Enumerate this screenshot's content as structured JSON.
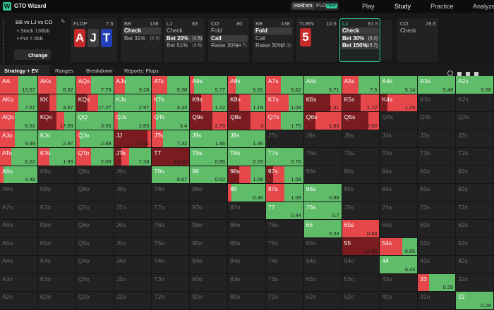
{
  "app": {
    "logo": "W",
    "name": "GTO Wizard",
    "modes": [
      "Hold'em",
      "PLO"
    ],
    "badge": "NEW",
    "nav": [
      "Play",
      "Study",
      "Practice",
      "Analyze"
    ]
  },
  "spot": {
    "title": "BB vs LJ vs CO",
    "stack": "Stack 138bb",
    "pot": "Pot 7.5bb",
    "button": "Change"
  },
  "flop": {
    "label": "FLOP",
    "pot": 7.5,
    "cards": [
      {
        "rank": "A",
        "color": "#c62a2a"
      },
      {
        "rank": "J",
        "color": "#3d3d3d"
      },
      {
        "rank": "T",
        "color": "#2440b8"
      }
    ]
  },
  "turn": {
    "label": "TURN",
    "pot": 10.5,
    "cards": [
      {
        "rank": "5",
        "color": "#c62a2a"
      }
    ]
  },
  "players": [
    {
      "player": "BB",
      "stack": 138,
      "actions": [
        {
          "label": "Check",
          "selected": true
        },
        {
          "label": "Bet 31%",
          "size": "(2.3)"
        }
      ]
    },
    {
      "player": "LJ",
      "stack": 83,
      "actions": [
        {
          "label": "Check"
        },
        {
          "label": "Bet 20%",
          "size": "(1.5)",
          "selected": true
        },
        {
          "label": "Bet 51%",
          "size": "(3.8)"
        }
      ]
    },
    {
      "player": "CO",
      "stack": 80,
      "actions": [
        {
          "label": "Fold"
        },
        {
          "label": "Call",
          "selected": true
        },
        {
          "label": "Raise 30%",
          "size": "(4.7)"
        }
      ]
    },
    {
      "player": "BB",
      "stack": 138,
      "actions": [
        {
          "label": "Fold",
          "selected": true
        },
        {
          "label": "Call"
        },
        {
          "label": "Raise 30%",
          "size": "(5.1)"
        }
      ]
    },
    {
      "player": "LJ",
      "stack": 81.5,
      "current": true,
      "actions": [
        {
          "label": "Check",
          "selected": true
        },
        {
          "label": "Bet 30%",
          "size": "(3.2)",
          "selected": true
        },
        {
          "label": "Bet 150%",
          "size": "(15.7)",
          "selected": true
        }
      ]
    },
    {
      "player": "CO",
      "stack": 78.5,
      "actions": [
        {
          "label": "Check"
        }
      ]
    }
  ],
  "tabs": [
    "Strategy + EV",
    "Ranges",
    "Breakdown",
    "Reports: Flops"
  ],
  "colors": [
    "#7a1c1f",
    "#e5474b",
    "#5fbd69"
  ],
  "grid": [
    [
      {
        "h": "AA",
        "ev": 13.57,
        "f": [
          0,
          0.5,
          0.5
        ]
      },
      {
        "h": "AKs",
        "ev": 8.52,
        "f": [
          0,
          0.5,
          0.5
        ]
      },
      {
        "h": "AQs",
        "ev": 7.79,
        "f": [
          0,
          0.4,
          0.6
        ]
      },
      {
        "h": "AJs",
        "ev": 9.28,
        "f": [
          0,
          0.3,
          0.7
        ]
      },
      {
        "h": "ATs",
        "ev": 9.38,
        "f": [
          0,
          0.4,
          0.6
        ]
      },
      {
        "h": "A9s",
        "ev": 5.77,
        "f": [
          0,
          0.1,
          0.9
        ]
      },
      {
        "h": "A8s",
        "ev": 5.61,
        "f": [
          0,
          0.2,
          0.8
        ]
      },
      {
        "h": "A7s",
        "ev": 5.62,
        "f": [
          0,
          0.4,
          0.6
        ]
      },
      {
        "h": "A6s",
        "ev": 5.71,
        "f": [
          0,
          0,
          1
        ]
      },
      {
        "h": "A5s",
        "ev": 7.5,
        "f": [
          0,
          0.45,
          0.55
        ]
      },
      {
        "h": "A4s",
        "ev": 5.14,
        "f": [
          0,
          0,
          1
        ]
      },
      {
        "h": "A3s",
        "ev": 5.46,
        "f": [
          0,
          0,
          1
        ]
      },
      {
        "h": "A2s",
        "ev": 5.66,
        "f": [
          0,
          0,
          1
        ]
      }
    ],
    [
      {
        "h": "AKo",
        "ev": 7.57,
        "f": [
          0,
          0.5,
          0.5
        ]
      },
      {
        "h": "KK",
        "ev": 3.67,
        "f": [
          0.3,
          0.2,
          0.5
        ]
      },
      {
        "h": "KQs",
        "ev": 17.27,
        "f": [
          0.3,
          0.3,
          0.4
        ]
      },
      {
        "h": "KJs",
        "ev": 2.97,
        "f": [
          0,
          0,
          1
        ]
      },
      {
        "h": "KTs",
        "ev": 3.33,
        "f": [
          0,
          0.1,
          0.9
        ]
      },
      {
        "h": "K9s",
        "ev": 1.12,
        "f": [
          0.3,
          0.3,
          0.4
        ]
      },
      {
        "h": "K8s",
        "ev": 1.19,
        "f": [
          0.3,
          0.3,
          0.4
        ]
      },
      {
        "h": "K7s",
        "ev": 1.08,
        "f": [
          0,
          0.6,
          0.4
        ]
      },
      {
        "h": "K6s",
        "ev": 1.31,
        "f": [
          0.7,
          0.3,
          0
        ]
      },
      {
        "h": "K5s",
        "ev": 1.72,
        "f": [
          0.5,
          0.5,
          0
        ]
      },
      {
        "h": "K4s",
        "ev": 1.25,
        "f": [
          0.2,
          0.8,
          0
        ]
      },
      "K3s",
      "K2s"
    ],
    [
      {
        "h": "AQo",
        "ev": 6.52,
        "f": [
          0,
          0.4,
          0.6
        ]
      },
      {
        "h": "KQo",
        "ev": 17.09,
        "f": [
          0.5,
          0.2,
          0.3
        ]
      },
      {
        "h": "QQ",
        "ev": 3.55,
        "f": [
          0,
          0,
          1
        ]
      },
      {
        "h": "QJs",
        "ev": 2.83,
        "f": [
          0,
          0.1,
          0.9
        ]
      },
      {
        "h": "QTs",
        "ev": 3.4,
        "f": [
          0,
          0.1,
          0.9
        ]
      },
      {
        "h": "Q9s",
        "ev": 2.79,
        "f": [
          0.6,
          0.4,
          0
        ]
      },
      {
        "h": "Q8s",
        "ev": 3,
        "f": [
          0.6,
          0.4,
          0
        ]
      },
      {
        "h": "Q7s",
        "ev": 1.75,
        "f": [
          0,
          0.4,
          0.6
        ]
      },
      {
        "h": "Q6s",
        "ev": 1.63,
        "f": [
          0.3,
          0.7,
          0
        ]
      },
      {
        "h": "Q5s",
        "ev": 2.02,
        "f": [
          0.7,
          0.3,
          0
        ]
      },
      "Q4s",
      "Q3s",
      "Q2s"
    ],
    [
      {
        "h": "AJo",
        "ev": 9.49,
        "f": [
          0,
          0.4,
          0.6
        ]
      },
      {
        "h": "KJo",
        "ev": 2.97,
        "f": [
          0,
          0,
          1
        ]
      },
      {
        "h": "QJo",
        "ev": 2.88,
        "f": [
          0,
          0.1,
          0.9
        ]
      },
      {
        "h": "JJ",
        "ev": 13.11,
        "f": [
          0.9,
          0.1,
          0
        ]
      },
      {
        "h": "JTs",
        "ev": 7.32,
        "f": [
          0,
          0.3,
          0.7
        ]
      },
      {
        "h": "J9s",
        "ev": 1.46,
        "f": [
          0,
          0,
          1
        ]
      },
      {
        "h": "J8s",
        "ev": 1.46,
        "f": [
          0,
          0,
          1
        ]
      },
      "J7s",
      "J6s",
      "J5s",
      "J4s",
      "J3s",
      "J2s"
    ],
    [
      {
        "h": "ATo",
        "ev": 8.22,
        "f": [
          0,
          0.3,
          0.7
        ]
      },
      {
        "h": "KTo",
        "ev": 1.99,
        "f": [
          0,
          0.3,
          0.7
        ]
      },
      {
        "h": "QTo",
        "ev": 2.09,
        "f": [
          0,
          0.4,
          0.6
        ]
      },
      {
        "h": "JTo",
        "ev": 7.38,
        "f": [
          0.2,
          0.2,
          0.6
        ]
      },
      {
        "h": "TT",
        "ev": 12.46,
        "f": [
          1,
          0,
          0
        ]
      },
      {
        "h": "T9s",
        "ev": 0.85,
        "f": [
          0,
          0,
          1
        ]
      },
      {
        "h": "T8s",
        "ev": 0.78,
        "f": [
          0,
          0,
          1
        ]
      },
      {
        "h": "T7s",
        "ev": 0.76,
        "f": [
          0,
          0,
          1
        ]
      },
      "T6s",
      "T5s",
      "T4s",
      "T3s",
      "T2s"
    ],
    [
      {
        "h": "A9o",
        "ev": 4.49,
        "f": [
          0,
          0.1,
          0.9
        ]
      },
      "K9o",
      "Q9o",
      "J9o",
      {
        "h": "T9o",
        "ev": 0.87,
        "f": [
          0,
          0,
          1
        ]
      },
      {
        "h": "99",
        "ev": 0.52,
        "f": [
          0,
          0,
          1
        ]
      },
      {
        "h": "98s",
        "ev": 1.08,
        "f": [
          0.3,
          0.3,
          0.4
        ]
      },
      {
        "h": "97s",
        "ev": 1.08,
        "f": [
          0.2,
          0.3,
          0.5
        ]
      },
      "96s",
      "95s",
      "94s",
      "93s",
      "92s"
    ],
    [
      "A8o",
      "K8o",
      "Q8o",
      "J8o",
      "T8o",
      "98o",
      {
        "h": "88",
        "ev": 0.46,
        "f": [
          0,
          0.1,
          0.9
        ]
      },
      {
        "h": "87s",
        "ev": 1.08,
        "f": [
          0,
          0.5,
          0.5
        ]
      },
      {
        "h": "86s",
        "ev": 0.88,
        "f": [
          0,
          0,
          1
        ]
      },
      "85s",
      "84s",
      "83s",
      "82s"
    ],
    [
      "A7o",
      "K7o",
      "Q7o",
      "J7o",
      "T7o",
      "97o",
      "87o",
      {
        "h": "77",
        "ev": 0.44,
        "f": [
          0,
          0,
          1
        ]
      },
      {
        "h": "76s",
        "ev": 0.7,
        "f": [
          0,
          0,
          1
        ]
      },
      "75s",
      "74s",
      "73s",
      "72s"
    ],
    [
      "A6o",
      "K6o",
      "Q6o",
      "J6o",
      "T6o",
      "96o",
      "86o",
      "76o",
      {
        "h": "66",
        "ev": 0.33,
        "f": [
          0,
          0,
          1
        ]
      },
      {
        "h": "65s",
        "ev": 0.83,
        "f": [
          0,
          1,
          0
        ]
      },
      "64s",
      "63s",
      "62s"
    ],
    [
      "A5o",
      "K5o",
      "Q5o",
      "J5o",
      "T5o",
      "95o",
      "85o",
      "75o",
      "65o",
      {
        "h": "55",
        "ev": 11.88,
        "f": [
          1,
          0,
          0
        ]
      },
      {
        "h": "54s",
        "ev": 0.85,
        "f": [
          0,
          0.6,
          0.4
        ]
      },
      "53s",
      "52s"
    ],
    [
      "A4o",
      "K4o",
      "Q4o",
      "J4o",
      "T4o",
      "94o",
      "84o",
      "74o",
      "64o",
      "54o",
      {
        "h": "44",
        "ev": 0.43,
        "f": [
          0,
          0,
          1
        ]
      },
      "43s",
      "42s"
    ],
    [
      "A3o",
      "K3o",
      "Q3o",
      "J3o",
      "T3o",
      "93o",
      "83o",
      "73o",
      "63o",
      "53o",
      "43o",
      {
        "h": "33",
        "ev": 0.35,
        "f": [
          0,
          0.3,
          0.7
        ]
      },
      "32s"
    ],
    [
      "A2o",
      "K2o",
      "Q2o",
      "J2o",
      "T2o",
      "92o",
      "82o",
      "72o",
      "62o",
      "52o",
      "42o",
      "32o",
      {
        "h": "22",
        "ev": 0.28,
        "f": [
          0,
          0,
          1
        ]
      }
    ]
  ]
}
